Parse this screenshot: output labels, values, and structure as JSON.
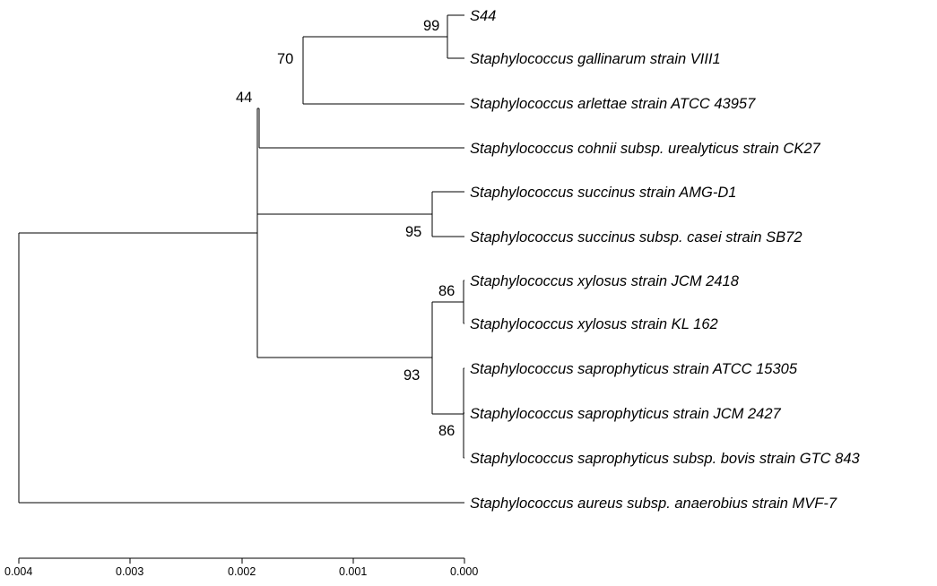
{
  "tree": {
    "taxa": [
      {
        "id": "t1",
        "label": "S44"
      },
      {
        "id": "t2",
        "label": "Staphylococcus gallinarum strain VIII1"
      },
      {
        "id": "t3",
        "label": "Staphylococcus arlettae strain ATCC 43957"
      },
      {
        "id": "t4",
        "label": "Staphylococcus cohnii subsp. urealyticus strain CK27"
      },
      {
        "id": "t5",
        "label": "Staphylococcus succinus strain AMG-D1"
      },
      {
        "id": "t6",
        "label": "Staphylococcus succinus subsp. casei strain SB72"
      },
      {
        "id": "t7",
        "label": "Staphylococcus xylosus strain JCM 2418"
      },
      {
        "id": "t8",
        "label": "Staphylococcus xylosus strain KL 162"
      },
      {
        "id": "t9",
        "label": "Staphylococcus saprophyticus strain ATCC 15305"
      },
      {
        "id": "t10",
        "label": "Staphylococcus saprophyticus strain JCM 2427"
      },
      {
        "id": "t11",
        "label": "Staphylococcus saprophyticus subsp. bovis strain GTC 843"
      },
      {
        "id": "t12",
        "label": "Staphylococcus aureus subsp. anaerobius strain MVF-7"
      }
    ],
    "bootstrap": {
      "s44_gallinarum": "99",
      "arlettae_clade": "70",
      "cohnii_clade": "44",
      "succinus_clade": "95",
      "xylosus_clade": "86",
      "xylosus_saprophyticus_clade": "93",
      "saprophyticus_clade": "86"
    }
  },
  "scale": {
    "ticks": [
      "0.004",
      "0.003",
      "0.002",
      "0.001",
      "0.000"
    ]
  },
  "colors": {
    "line": "#000000",
    "text": "#000000",
    "background": "#ffffff"
  }
}
